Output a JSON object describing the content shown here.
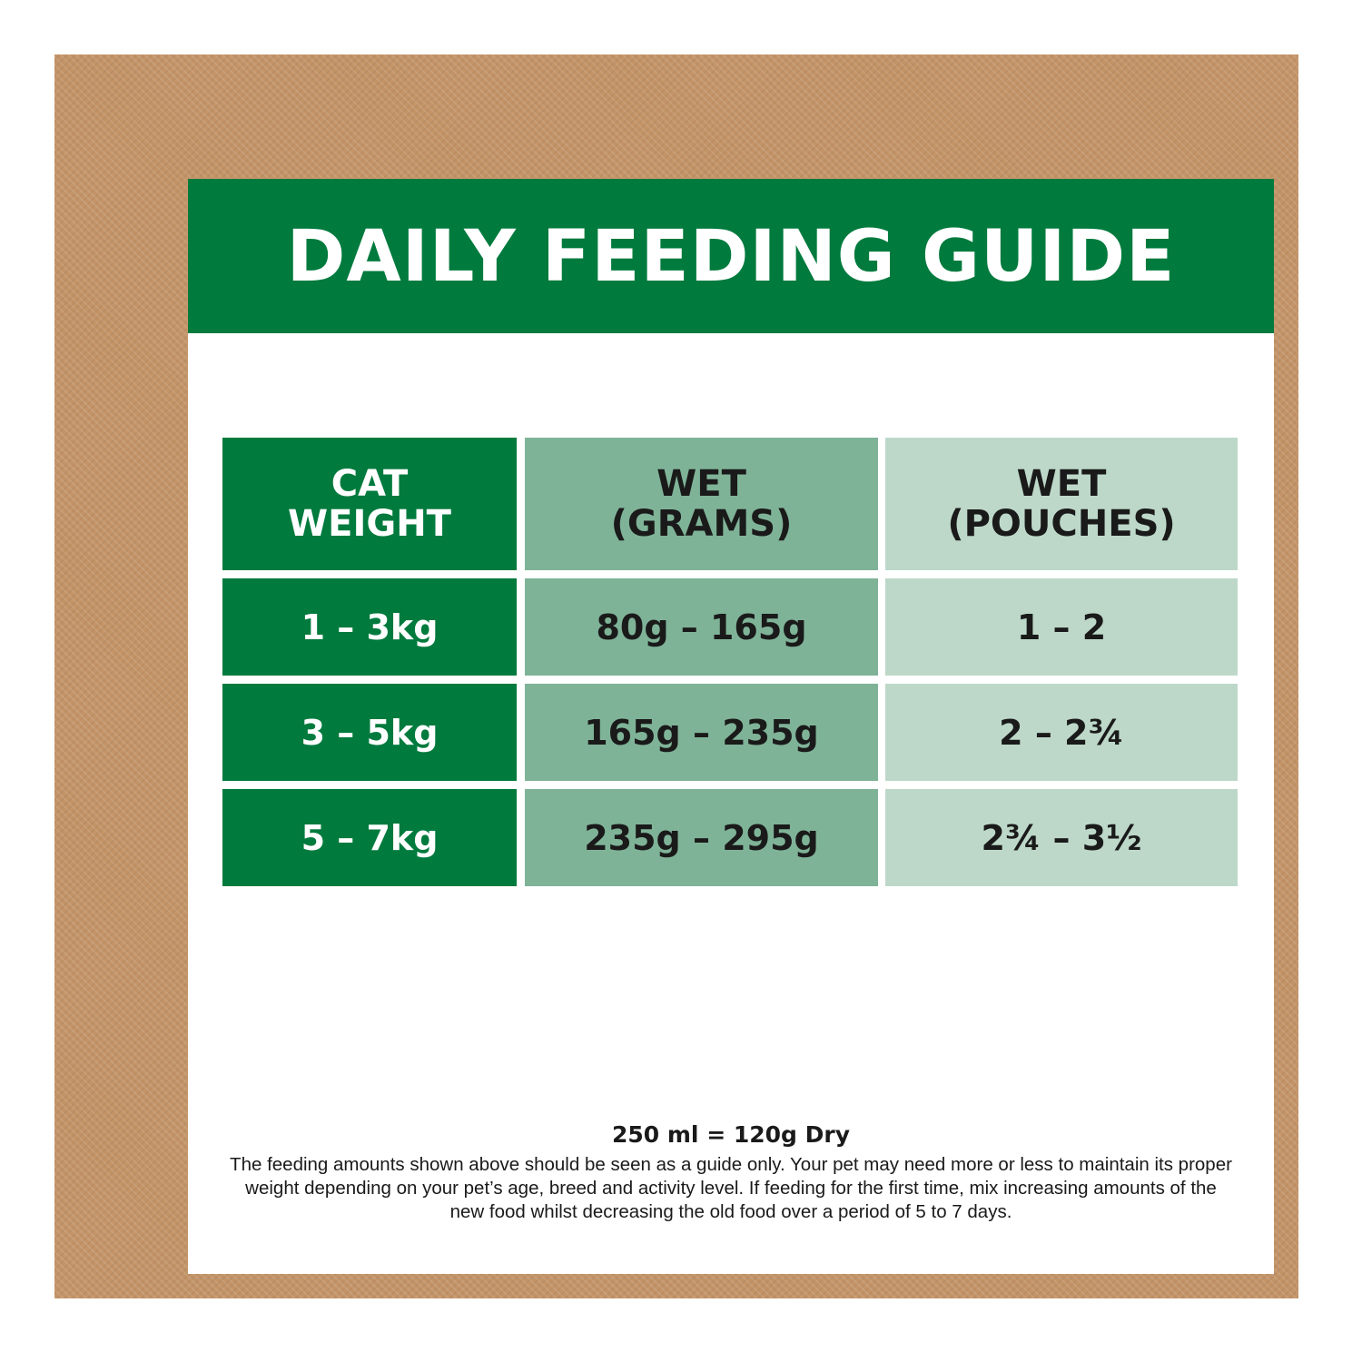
{
  "title": "DAILY FEEDING GUIDE",
  "table": {
    "headers": [
      [
        "CAT",
        "WEIGHT"
      ],
      [
        "WET",
        "(GRAMS)"
      ],
      [
        "WET",
        "(POUCHES)"
      ]
    ],
    "rows": [
      [
        "1 – 3kg",
        "80g – 165g",
        "1 – 2"
      ],
      [
        "3 – 5kg",
        "165g – 235g",
        "2 – 2¾"
      ],
      [
        "5 – 7kg",
        "235g – 295g",
        "2¾ – 3½"
      ]
    ]
  },
  "note": {
    "conversion": "250 ml = 120g Dry",
    "body": "The feeding amounts shown above should be seen as a guide only. Your pet may need more or less to maintain its proper weight depending on your pet’s age, breed and activity level. If feeding for the first time, mix increasing amounts of the new food whilst decreasing the old food over a period of 5 to 7 days."
  },
  "colors": {
    "brand_green": "#007a3d",
    "mid_green": "#7fb398",
    "light_green": "#bdd8c9",
    "kraft_border": "#c39468"
  }
}
